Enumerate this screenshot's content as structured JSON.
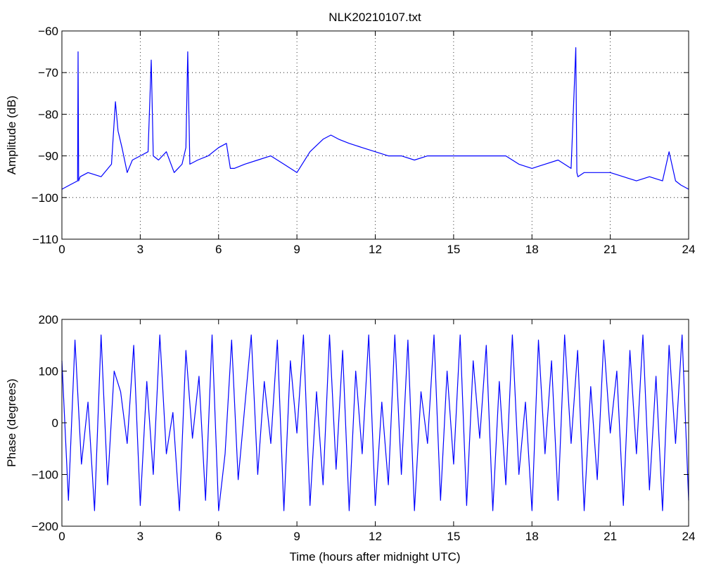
{
  "chart_data": [
    {
      "type": "line",
      "title": "NLK20210107.txt",
      "xlabel": "",
      "ylabel": "Amplitude (dB)",
      "xlim": [
        0,
        24
      ],
      "ylim": [
        -110,
        -60
      ],
      "xticks": [
        0,
        3,
        6,
        9,
        12,
        15,
        18,
        21,
        24
      ],
      "yticks": [
        -110,
        -100,
        -90,
        -80,
        -70,
        -60
      ],
      "grid": true,
      "line_color": "#0000ff",
      "series": [
        {
          "x": [
            0,
            0.3,
            0.6,
            0.62,
            0.64,
            0.7,
            1.0,
            1.5,
            1.9,
            2.05,
            2.15,
            2.3,
            2.5,
            2.7,
            3.0,
            3.3,
            3.42,
            3.5,
            3.7,
            4.0,
            4.3,
            4.6,
            4.75,
            4.82,
            4.9,
            5.2,
            5.6,
            6.0,
            6.3,
            6.45,
            6.6,
            7.0,
            7.5,
            8.0,
            8.5,
            9.0,
            9.5,
            10.0,
            10.3,
            10.6,
            11.0,
            11.5,
            12.0,
            12.5,
            13.0,
            13.5,
            14.0,
            14.5,
            15.0,
            15.5,
            16.0,
            16.5,
            17.0,
            17.5,
            18.0,
            18.5,
            19.0,
            19.5,
            19.68,
            19.72,
            19.76,
            20.0,
            20.5,
            21.0,
            21.5,
            22.0,
            22.5,
            23.0,
            23.25,
            23.5,
            23.7,
            24.0
          ],
          "y": [
            -98,
            -97,
            -96,
            -65,
            -96,
            -95,
            -94,
            -95,
            -92,
            -77,
            -84,
            -88,
            -94,
            -91,
            -90,
            -89,
            -67,
            -90,
            -91,
            -89,
            -94,
            -92,
            -88,
            -65,
            -92,
            -91,
            -90,
            -88,
            -87,
            -93,
            -93,
            -92,
            -91,
            -90,
            -92,
            -94,
            -89,
            -86,
            -85,
            -86,
            -87,
            -88,
            -89,
            -90,
            -90,
            -91,
            -90,
            -90,
            -90,
            -90,
            -90,
            -90,
            -90,
            -92,
            -93,
            -92,
            -91,
            -93,
            -64,
            -94,
            -95,
            -94,
            -94,
            -94,
            -95,
            -96,
            -95,
            -96,
            -89,
            -96,
            -97,
            -98
          ]
        }
      ]
    },
    {
      "type": "line",
      "title": "",
      "xlabel": "Time (hours after midnight UTC)",
      "ylabel": "Phase (degrees)",
      "xlim": [
        0,
        24
      ],
      "ylim": [
        -200,
        200
      ],
      "xticks": [
        0,
        3,
        6,
        9,
        12,
        15,
        18,
        21,
        24
      ],
      "yticks": [
        -200,
        -100,
        0,
        100,
        200
      ],
      "grid": false,
      "line_color": "#0000ff",
      "series": [
        {
          "x": [
            0,
            0.25,
            0.5,
            0.75,
            1.0,
            1.25,
            1.5,
            1.75,
            2.0,
            2.25,
            2.5,
            2.75,
            3.0,
            3.25,
            3.5,
            3.75,
            4.0,
            4.25,
            4.5,
            4.75,
            5.0,
            5.25,
            5.5,
            5.75,
            6.0,
            6.25,
            6.5,
            6.75,
            7.0,
            7.25,
            7.5,
            7.75,
            8.0,
            8.25,
            8.5,
            8.75,
            9.0,
            9.25,
            9.5,
            9.75,
            10.0,
            10.25,
            10.5,
            10.75,
            11.0,
            11.25,
            11.5,
            11.75,
            12.0,
            12.25,
            12.5,
            12.75,
            13.0,
            13.25,
            13.5,
            13.75,
            14.0,
            14.25,
            14.5,
            14.75,
            15.0,
            15.25,
            15.5,
            15.75,
            16.0,
            16.25,
            16.5,
            16.75,
            17.0,
            17.25,
            17.5,
            17.75,
            18.0,
            18.25,
            18.5,
            18.75,
            19.0,
            19.25,
            19.5,
            19.75,
            20.0,
            20.25,
            20.5,
            20.75,
            21.0,
            21.25,
            21.5,
            21.75,
            22.0,
            22.25,
            22.5,
            22.75,
            23.0,
            23.25,
            23.5,
            23.75,
            24.0
          ],
          "y": [
            120,
            -150,
            160,
            -80,
            40,
            -170,
            170,
            -120,
            100,
            60,
            -40,
            150,
            -160,
            80,
            -100,
            170,
            -60,
            20,
            -170,
            140,
            -30,
            90,
            -150,
            170,
            -170,
            -60,
            160,
            -110,
            30,
            170,
            -100,
            80,
            -40,
            160,
            -170,
            120,
            -20,
            170,
            -160,
            60,
            -120,
            170,
            -90,
            140,
            -170,
            100,
            -60,
            170,
            -160,
            40,
            -120,
            170,
            -100,
            160,
            -170,
            60,
            -40,
            170,
            -150,
            100,
            -80,
            170,
            -160,
            120,
            -30,
            150,
            -170,
            80,
            -120,
            170,
            -100,
            40,
            -170,
            160,
            -60,
            120,
            -150,
            170,
            -40,
            140,
            -170,
            70,
            -110,
            160,
            -20,
            100,
            -160,
            140,
            -60,
            170,
            -130,
            90,
            -170,
            150,
            -40,
            170,
            -150
          ]
        }
      ]
    }
  ]
}
